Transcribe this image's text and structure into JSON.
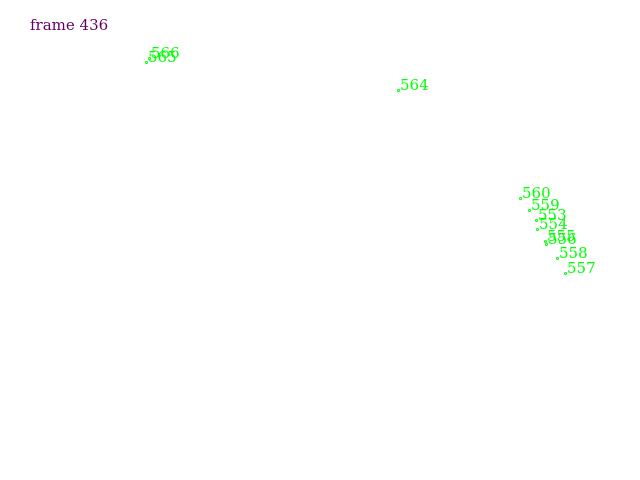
{
  "frame": {
    "label": "frame 436"
  },
  "colors": {
    "frame_label": "#660066",
    "marker": "#00ff00"
  },
  "markers": [
    {
      "id": "566",
      "label": "566"
    },
    {
      "id": "565",
      "label": "565"
    },
    {
      "id": "564",
      "label": "564"
    },
    {
      "id": "560",
      "label": "560"
    },
    {
      "id": "559",
      "label": "559"
    },
    {
      "id": "553",
      "label": "553"
    },
    {
      "id": "554",
      "label": "554"
    },
    {
      "id": "555",
      "label": "555"
    },
    {
      "id": "556",
      "label": "556"
    },
    {
      "id": "558",
      "label": "558"
    },
    {
      "id": "557",
      "label": "557"
    }
  ]
}
